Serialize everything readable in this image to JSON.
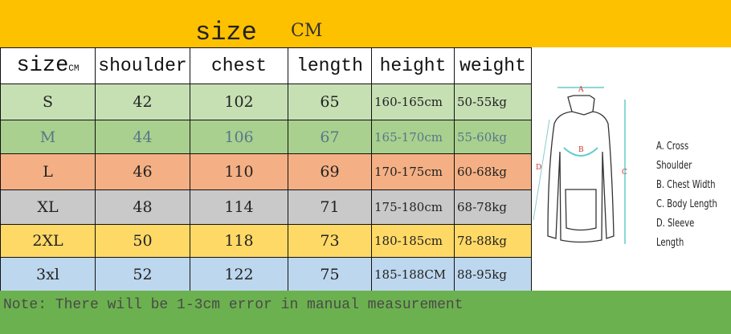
{
  "banner": {
    "title": "size",
    "unit": "CM",
    "color": "#fec100"
  },
  "table": {
    "headers": {
      "size": "size",
      "size_unit": "CM",
      "shoulder": "shoulder",
      "chest": "chest",
      "length": "length",
      "height": "height",
      "weight": "weight"
    },
    "rows": [
      {
        "size": "S",
        "shoulder": "42",
        "chest": "102",
        "length": "65",
        "height": "160-165cm",
        "weight": "50-55kg",
        "color": "#c6e0b4",
        "text": "#222"
      },
      {
        "size": "M",
        "shoulder": "44",
        "chest": "106",
        "length": "67",
        "height": "165-170cm",
        "weight": "55-60kg",
        "color": "#a9d08e",
        "text": "#56788a"
      },
      {
        "size": "L",
        "shoulder": "46",
        "chest": "110",
        "length": "69",
        "height": "170-175cm",
        "weight": "60-68kg",
        "color": "#f4b084",
        "text": "#222"
      },
      {
        "size": "XL",
        "shoulder": "48",
        "chest": "114",
        "length": "71",
        "height": "175-180cm",
        "weight": "68-78kg",
        "color": "#c9c9c9",
        "text": "#222"
      },
      {
        "size": "2XL",
        "shoulder": "50",
        "chest": "118",
        "length": "73",
        "height": "180-185cm",
        "weight": "78-88kg",
        "color": "#ffd966",
        "text": "#222"
      },
      {
        "size": "3xl",
        "shoulder": "52",
        "chest": "122",
        "length": "75",
        "height": "185-188CM",
        "weight": "88-95kg",
        "color": "#bdd7ee",
        "text": "#222"
      }
    ]
  },
  "diagram": {
    "marks": {
      "a": "A",
      "b": "B",
      "c": "C",
      "d": "D"
    },
    "legend": [
      "A. Cross Shoulder",
      "B. Chest Width",
      "C. Body Length",
      "D. Sleeve Length"
    ]
  },
  "note": "Note: There will be 1-3cm error in manual measurement"
}
